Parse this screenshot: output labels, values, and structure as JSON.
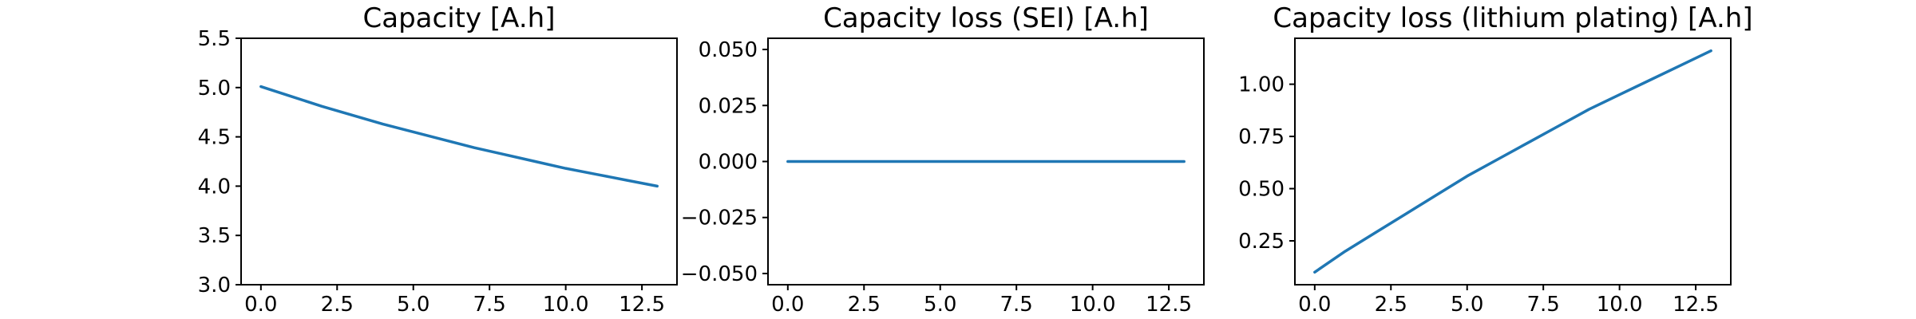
{
  "chart_data": [
    {
      "type": "line",
      "title": "Capacity [A.h]",
      "xlabel": "",
      "ylabel": "",
      "xlim": [
        -0.65,
        13.65
      ],
      "ylim": [
        3.0,
        5.5
      ],
      "xticks": [
        0.0,
        2.5,
        5.0,
        7.5,
        10.0,
        12.5
      ],
      "xtick_labels": [
        "0.0",
        "2.5",
        "5.0",
        "7.5",
        "10.0",
        "12.5"
      ],
      "yticks": [
        3.0,
        3.5,
        4.0,
        4.5,
        5.0,
        5.5
      ],
      "ytick_labels": [
        "3.0",
        "3.5",
        "4.0",
        "4.5",
        "5.0",
        "5.5"
      ],
      "grid": false,
      "color": "#1f77b4",
      "series": [
        {
          "x": [
            0,
            1,
            2,
            3,
            4,
            5,
            6,
            7,
            8,
            9,
            10,
            11,
            12,
            13
          ],
          "values": [
            5.01,
            4.91,
            4.81,
            4.72,
            4.63,
            4.55,
            4.47,
            4.39,
            4.32,
            4.25,
            4.18,
            4.12,
            4.06,
            4.0
          ]
        }
      ]
    },
    {
      "type": "line",
      "title": "Capacity loss (SEI) [A.h]",
      "xlabel": "",
      "ylabel": "",
      "xlim": [
        -0.65,
        13.65
      ],
      "ylim": [
        -0.055,
        0.055
      ],
      "xticks": [
        0.0,
        2.5,
        5.0,
        7.5,
        10.0,
        12.5
      ],
      "xtick_labels": [
        "0.0",
        "2.5",
        "5.0",
        "7.5",
        "10.0",
        "12.5"
      ],
      "yticks": [
        -0.05,
        -0.025,
        0.0,
        0.025,
        0.05
      ],
      "ytick_labels": [
        "−0.050",
        "−0.025",
        "0.000",
        "0.025",
        "0.050"
      ],
      "grid": false,
      "color": "#1f77b4",
      "series": [
        {
          "x": [
            0,
            1,
            2,
            3,
            4,
            5,
            6,
            7,
            8,
            9,
            10,
            11,
            12,
            13
          ],
          "values": [
            0,
            0,
            0,
            0,
            0,
            0,
            0,
            0,
            0,
            0,
            0,
            0,
            0,
            0
          ]
        }
      ]
    },
    {
      "type": "line",
      "title": "Capacity loss (lithium plating) [A.h]",
      "xlabel": "",
      "ylabel": "",
      "xlim": [
        -0.65,
        13.65
      ],
      "ylim": [
        0.04,
        1.22
      ],
      "xticks": [
        0.0,
        2.5,
        5.0,
        7.5,
        10.0,
        12.5
      ],
      "xtick_labels": [
        "0.0",
        "2.5",
        "5.0",
        "7.5",
        "10.0",
        "12.5"
      ],
      "yticks": [
        0.25,
        0.5,
        0.75,
        1.0
      ],
      "ytick_labels": [
        "0.25",
        "0.50",
        "0.75",
        "1.00"
      ],
      "grid": false,
      "color": "#1f77b4",
      "series": [
        {
          "x": [
            0,
            1,
            2,
            3,
            4,
            5,
            6,
            7,
            8,
            9,
            10,
            11,
            12,
            13
          ],
          "values": [
            0.1,
            0.2,
            0.29,
            0.38,
            0.47,
            0.56,
            0.64,
            0.72,
            0.8,
            0.88,
            0.95,
            1.02,
            1.09,
            1.16
          ]
        }
      ]
    }
  ]
}
